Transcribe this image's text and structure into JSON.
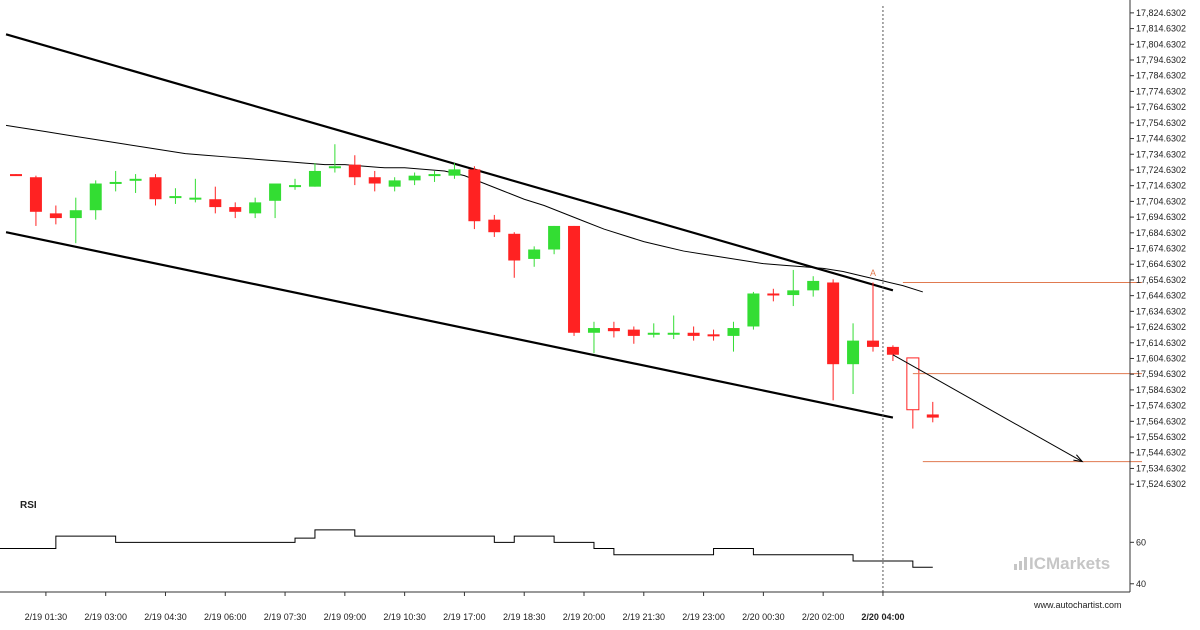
{
  "chart_data": {
    "type": "candlestick",
    "y_axis": {
      "range": [
        17519,
        17829
      ],
      "ticks": [
        "17,824.6302",
        "17,814.6302",
        "17,804.6302",
        "17,794.6302",
        "17,784.6302",
        "17,774.6302",
        "17,764.6302",
        "17,754.6302",
        "17,744.6302",
        "17,734.6302",
        "17,724.6302",
        "17,714.6302",
        "17,704.6302",
        "17,694.6302",
        "17,684.6302",
        "17,674.6302",
        "17,664.6302",
        "17,654.6302",
        "17,644.6302",
        "17,634.6302",
        "17,624.6302",
        "17,614.6302",
        "17,604.6302",
        "17,594.6302",
        "17,584.6302",
        "17,574.6302",
        "17,564.6302",
        "17,554.6302",
        "17,544.6302",
        "17,534.6302",
        "17,524.6302"
      ]
    },
    "x_axis": {
      "ticks": [
        "2/19 01:30",
        "2/19 03:00",
        "2/19 04:30",
        "2/19 06:00",
        "2/19 07:30",
        "2/19 09:00",
        "2/19 10:30",
        "2/19 17:00",
        "2/19 18:30",
        "2/19 20:00",
        "2/19 21:30",
        "2/19 23:00",
        "2/20 00:30",
        "2/20 02:00",
        "2/20 04:00"
      ],
      "tick_slots": [
        1.5,
        4.5,
        7.5,
        10.5,
        13.5,
        16.5,
        19.5,
        22.5,
        25.5,
        28.5,
        31.5,
        34.5,
        37.5,
        40.5,
        43.5
      ],
      "highlight_tick": "2/20 04:00"
    },
    "candles": [
      {
        "o": 17722,
        "h": 17722,
        "c": 17721,
        "l": 17721
      },
      {
        "o": 17720,
        "h": 17721,
        "c": 17698,
        "l": 17689
      },
      {
        "o": 17697,
        "h": 17702,
        "c": 17694,
        "l": 17690
      },
      {
        "o": 17694,
        "h": 17707,
        "c": 17699,
        "l": 17678
      },
      {
        "o": 17699,
        "h": 17718,
        "c": 17716,
        "l": 17693
      },
      {
        "o": 17716,
        "h": 17724,
        "c": 17717,
        "l": 17711
      },
      {
        "o": 17718,
        "h": 17722,
        "c": 17719,
        "l": 17710
      },
      {
        "o": 17720,
        "h": 17722,
        "c": 17706,
        "l": 17702
      },
      {
        "o": 17707,
        "h": 17713,
        "c": 17708,
        "l": 17703
      },
      {
        "o": 17707,
        "h": 17719,
        "c": 17707,
        "l": 17704
      },
      {
        "o": 17706,
        "h": 17714,
        "c": 17701,
        "l": 17697
      },
      {
        "o": 17701,
        "h": 17704,
        "c": 17698,
        "l": 17694
      },
      {
        "o": 17697,
        "h": 17707,
        "c": 17704,
        "l": 17694
      },
      {
        "o": 17705,
        "h": 17714,
        "c": 17716,
        "l": 17694
      },
      {
        "o": 17715,
        "h": 17719,
        "c": 17715,
        "l": 17712
      },
      {
        "o": 17714,
        "h": 17729,
        "c": 17724,
        "l": 17714
      },
      {
        "o": 17726,
        "h": 17741,
        "c": 17727,
        "l": 17723
      },
      {
        "o": 17728,
        "h": 17734,
        "c": 17720,
        "l": 17715
      },
      {
        "o": 17720,
        "h": 17724,
        "c": 17716,
        "l": 17711
      },
      {
        "o": 17714,
        "h": 17720,
        "c": 17718,
        "l": 17711
      },
      {
        "o": 17718,
        "h": 17723,
        "c": 17721,
        "l": 17715
      },
      {
        "o": 17721,
        "h": 17724,
        "c": 17722,
        "l": 17717
      },
      {
        "o": 17721,
        "h": 17729,
        "c": 17725,
        "l": 17719
      },
      {
        "o": 17725,
        "h": 17727,
        "c": 17692,
        "l": 17687
      },
      {
        "o": 17693,
        "h": 17696,
        "c": 17685,
        "l": 17682
      },
      {
        "o": 17684,
        "h": 17685,
        "c": 17667,
        "l": 17656
      },
      {
        "o": 17668,
        "h": 17676,
        "c": 17674,
        "l": 17663
      },
      {
        "o": 17674,
        "h": 17689,
        "c": 17689,
        "l": 17671
      },
      {
        "o": 17689,
        "h": 17689,
        "c": 17621,
        "l": 17619
      },
      {
        "o": 17621,
        "h": 17628,
        "c": 17624,
        "l": 17608
      },
      {
        "o": 17624,
        "h": 17628,
        "c": 17622,
        "l": 17618
      },
      {
        "o": 17623,
        "h": 17625,
        "c": 17619,
        "l": 17614
      },
      {
        "o": 17620,
        "h": 17627,
        "c": 17621,
        "l": 17618
      },
      {
        "o": 17621,
        "h": 17632,
        "c": 17621,
        "l": 17617
      },
      {
        "o": 17621,
        "h": 17625,
        "c": 17619,
        "l": 17616
      },
      {
        "o": 17620,
        "h": 17623,
        "c": 17619,
        "l": 17616
      },
      {
        "o": 17619,
        "h": 17628,
        "c": 17624,
        "l": 17609
      },
      {
        "o": 17625,
        "h": 17647,
        "c": 17646,
        "l": 17623
      },
      {
        "o": 17646,
        "h": 17649,
        "c": 17645,
        "l": 17641
      },
      {
        "o": 17645,
        "h": 17661,
        "c": 17648,
        "l": 17638
      },
      {
        "o": 17648,
        "h": 17657,
        "c": 17654,
        "l": 17644
      },
      {
        "o": 17653,
        "h": 17655,
        "c": 17601,
        "l": 17578
      },
      {
        "o": 17601,
        "h": 17627,
        "c": 17616,
        "l": 17582
      },
      {
        "o": 17616,
        "h": 17653,
        "c": 17612,
        "l": 17609
      },
      {
        "o": 17612,
        "h": 17613,
        "c": 17607,
        "l": 17603
      },
      {
        "o": 17605,
        "h": 17605,
        "c": 17572,
        "l": 17560,
        "style": "hollow"
      },
      {
        "o": 17569,
        "h": 17577,
        "c": 17567,
        "l": 17564
      }
    ],
    "moving_average": [
      17753,
      17751,
      17749,
      17747,
      17745,
      17743,
      17741,
      17739,
      17737,
      17735,
      17734,
      17733,
      17732,
      17731,
      17730,
      17729,
      17728,
      17728,
      17727,
      17726,
      17726,
      17725,
      17724,
      17721,
      17716,
      17711,
      17706,
      17702,
      17697,
      17692,
      17687,
      17683,
      17679,
      17676,
      17673,
      17671,
      17669,
      17667,
      17665,
      17664,
      17663,
      17662,
      17660,
      17657,
      17654,
      17651,
      17647
    ],
    "channel": {
      "upper": {
        "from": [
          -0.5,
          17811
        ],
        "to": [
          44.0,
          17648
        ]
      },
      "lower": {
        "from": [
          -0.5,
          17685
        ],
        "to": [
          44.0,
          17567
        ]
      }
    },
    "forecast_arrow": {
      "from": [
        44.0,
        17607
      ],
      "to": [
        53.5,
        17539
      ]
    },
    "levels": [
      {
        "value": 17653,
        "from_slot": 44.5,
        "to_slot": 56.5
      },
      {
        "value": 17595,
        "from_slot": 45.0,
        "to_slot": 56.5
      },
      {
        "value": 17539,
        "from_slot": 45.5,
        "to_slot": 56.5
      }
    ],
    "marker": {
      "label": "A",
      "slot": 43.0,
      "value": 17656
    },
    "rsi": {
      "title": "RSI",
      "range": [
        37,
        78
      ],
      "ticks": [
        "60",
        "40"
      ],
      "tick_values": [
        60,
        40
      ],
      "values": [
        57,
        57,
        57,
        63,
        63,
        63,
        60,
        60,
        60,
        60,
        60,
        60,
        60,
        60,
        60,
        62,
        66,
        66,
        63,
        63,
        63,
        63,
        63,
        63,
        63,
        60,
        63,
        63,
        60,
        60,
        57,
        54,
        54,
        54,
        54,
        54,
        57,
        57,
        54,
        54,
        54,
        54,
        54,
        51,
        51,
        51,
        48
      ]
    }
  },
  "brand": {
    "logo_text": "ICMarkets",
    "logo_icon": "bars-icon"
  },
  "attribution": "www.autochartist.com",
  "colors": {
    "up": "#33dd33",
    "down": "#ff2222",
    "level": "#e07a50",
    "line": "#000000",
    "grid_separator": "#333333"
  }
}
